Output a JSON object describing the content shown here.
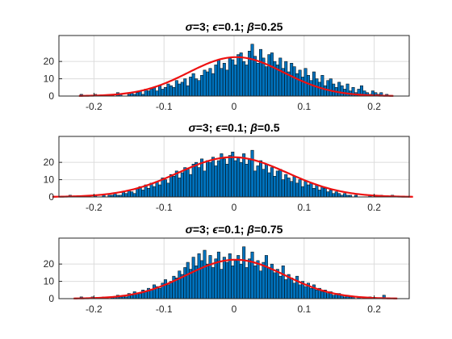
{
  "chart_data": [
    {
      "type": "bar",
      "title": "σ=3; ϵ=0.1; β=0.25",
      "title_parts": {
        "sigma": "σ",
        "sigma_val": "=3; ",
        "eps": "ϵ",
        "eps_val": "=0.1; ",
        "beta": "β",
        "beta_val": "=0.25"
      },
      "xlim": [
        -0.25,
        0.25
      ],
      "ylim": [
        0,
        35
      ],
      "xticks": [
        -0.2,
        -0.1,
        0,
        0.1,
        0.2
      ],
      "xtick_labels": [
        "-0.2",
        "-0.1",
        "0",
        "0.1",
        "0.2"
      ],
      "yticks": [
        0,
        10,
        20
      ],
      "ytick_labels": [
        "0",
        "10",
        "20"
      ],
      "grid": true,
      "histogram": {
        "bin_start": -0.22,
        "bin_width": 0.004,
        "counts": [
          1,
          0,
          0,
          0,
          0,
          1,
          0,
          0,
          0,
          0,
          0,
          1,
          0,
          2,
          1,
          0,
          0,
          1,
          2,
          1,
          2,
          3,
          1,
          4,
          3,
          4,
          5,
          3,
          6,
          4,
          5,
          7,
          6,
          5,
          9,
          7,
          8,
          10,
          6,
          11,
          13,
          10,
          9,
          12,
          15,
          14,
          16,
          13,
          18,
          21,
          16,
          19,
          15,
          22,
          21,
          18,
          24,
          25,
          20,
          18,
          26,
          30,
          23,
          19,
          27,
          22,
          17,
          24,
          25,
          20,
          18,
          22,
          16,
          20,
          14,
          19,
          17,
          13,
          15,
          11,
          16,
          12,
          9,
          14,
          10,
          8,
          12,
          6,
          9,
          10,
          7,
          5,
          8,
          6,
          4,
          7,
          3,
          5,
          2,
          4,
          6,
          3,
          2,
          1,
          3,
          2,
          1,
          2,
          0,
          1
        ]
      },
      "fit": {
        "type": "normal",
        "mean": 0.003,
        "sigma": 0.068,
        "peak": 22.5
      }
    },
    {
      "type": "bar",
      "title": "σ=3; ϵ=0.1; β=0.5",
      "title_parts": {
        "sigma": "σ",
        "sigma_val": "=3; ",
        "eps": "ϵ",
        "eps_val": "=0.1; ",
        "beta": "β",
        "beta_val": "=0.5"
      },
      "xlim": [
        -0.25,
        0.25
      ],
      "ylim": [
        0,
        35
      ],
      "xticks": [
        -0.2,
        -0.1,
        0,
        0.1,
        0.2
      ],
      "xtick_labels": [
        "-0.2",
        "-0.1",
        "0",
        "0.1",
        "0.2"
      ],
      "yticks": [
        0,
        10,
        20
      ],
      "ytick_labels": [
        "0",
        "10",
        "20"
      ],
      "grid": true,
      "histogram": {
        "bin_start": -0.236,
        "bin_width": 0.004,
        "counts": [
          1,
          0,
          0,
          0,
          0,
          0,
          0,
          0,
          0,
          1,
          0,
          0,
          1,
          0,
          1,
          1,
          2,
          1,
          1,
          3,
          2,
          4,
          3,
          2,
          5,
          6,
          4,
          7,
          5,
          8,
          6,
          9,
          7,
          11,
          10,
          8,
          13,
          12,
          15,
          11,
          14,
          17,
          16,
          13,
          19,
          20,
          17,
          22,
          15,
          21,
          20,
          23,
          18,
          21,
          25,
          22,
          19,
          24,
          26,
          21,
          23,
          20,
          25,
          19,
          22,
          27,
          15,
          18,
          21,
          16,
          19,
          14,
          17,
          12,
          15,
          16,
          10,
          13,
          11,
          9,
          12,
          8,
          10,
          6,
          9,
          7,
          8,
          5,
          7,
          4,
          6,
          5,
          3,
          4,
          2,
          3,
          2,
          1,
          2,
          1,
          1,
          0,
          1,
          0,
          0,
          0,
          0,
          1,
          0,
          0,
          0,
          1,
          0,
          0,
          0,
          1,
          0,
          0,
          0
        ]
      },
      "fit": {
        "type": "normal",
        "mean": -0.002,
        "sigma": 0.078,
        "peak": 23.0
      }
    },
    {
      "type": "bar",
      "title": "σ=3; ϵ=0.1; β=0.75",
      "title_parts": {
        "sigma": "σ",
        "sigma_val": "=3; ",
        "eps": "ϵ",
        "eps_val": "=0.1; ",
        "beta": "β",
        "beta_val": "=0.75"
      },
      "xlim": [
        -0.25,
        0.25
      ],
      "ylim": [
        0,
        35
      ],
      "xticks": [
        -0.2,
        -0.1,
        0,
        0.1,
        0.2
      ],
      "xtick_labels": [
        "-0.2",
        "-0.1",
        "0",
        "0.1",
        "0.2"
      ],
      "yticks": [
        0,
        10,
        20
      ],
      "ytick_labels": [
        "0",
        "10",
        "20"
      ],
      "grid": true,
      "histogram": {
        "bin_start": -0.22,
        "bin_width": 0.004,
        "counts": [
          1,
          0,
          0,
          0,
          1,
          0,
          0,
          0,
          1,
          1,
          0,
          1,
          1,
          2,
          1,
          2,
          1,
          3,
          2,
          4,
          3,
          3,
          5,
          4,
          6,
          5,
          8,
          7,
          6,
          9,
          11,
          8,
          10,
          13,
          12,
          16,
          14,
          18,
          21,
          17,
          24,
          19,
          26,
          22,
          28,
          20,
          25,
          18,
          23,
          27,
          17,
          24,
          21,
          26,
          19,
          22,
          25,
          20,
          30,
          18,
          23,
          27,
          19,
          22,
          16,
          21,
          25,
          18,
          20,
          15,
          17,
          13,
          19,
          11,
          14,
          12,
          9,
          13,
          8,
          10,
          7,
          9,
          6,
          8,
          5,
          6,
          4,
          5,
          3,
          4,
          2,
          3,
          3,
          2,
          1,
          2,
          1,
          1,
          0,
          1,
          0,
          0,
          0,
          1,
          0,
          0,
          0,
          0,
          2,
          0
        ]
      },
      "fit": {
        "type": "normal",
        "mean": 0.002,
        "sigma": 0.07,
        "peak": 22.5
      }
    }
  ]
}
